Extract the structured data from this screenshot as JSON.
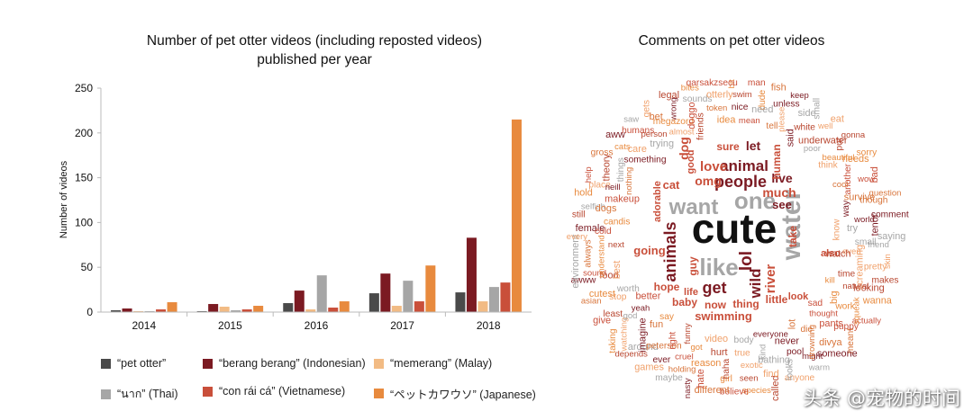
{
  "chart_data": [
    {
      "type": "bar",
      "title": "Number of pet otter videos (including reposted videos)",
      "subtitle": "published per year",
      "xlabel": "",
      "ylabel": "Number of videos",
      "ylim": [
        0,
        250
      ],
      "yticks": [
        0,
        50,
        100,
        150,
        200,
        250
      ],
      "categories": [
        "2014",
        "2015",
        "2016",
        "2017",
        "2018"
      ],
      "grid": false,
      "legend_position": "bottom",
      "series": [
        {
          "name": "“pet otter”",
          "color": "#4a4a4a",
          "values": [
            2,
            1,
            10,
            21,
            22
          ]
        },
        {
          "name": "“berang berang” (Indonesian)",
          "color": "#7b1a22",
          "values": [
            4,
            9,
            24,
            43,
            83
          ]
        },
        {
          "name": "“memerang” (Malay)",
          "color": "#f2bb84",
          "values": [
            1,
            6,
            3,
            7,
            12
          ]
        },
        {
          "name": "“นาก” (Thai)",
          "color": "#a6a6a6",
          "values": [
            1,
            2,
            41,
            35,
            28
          ]
        },
        {
          "name": "“con rái cá” (Vietnamese)",
          "color": "#c94f3a",
          "values": [
            3,
            3,
            5,
            12,
            33
          ]
        },
        {
          "name": "“ペットカワウソ” (Japanese)",
          "color": "#e88a3e",
          "values": [
            11,
            7,
            12,
            52,
            215
          ]
        }
      ]
    },
    {
      "type": "wordcloud",
      "title": "Comments on pet otter videos",
      "words": [
        "cute",
        "water",
        "like",
        "want",
        "one",
        "animal",
        "people",
        "love",
        "get",
        "wild",
        "lol",
        "river",
        "animals",
        "dog",
        "sure",
        "let",
        "live",
        "much",
        "see",
        "take",
        "omg",
        "cat",
        "going",
        "swimming",
        "baby",
        "now",
        "thing",
        "little",
        "hope",
        "life",
        "guy",
        "human",
        "adorable",
        "good",
        "also",
        "look",
        "bit",
        "man",
        "fish",
        "keep",
        "small",
        "eat",
        "gonna",
        "sorry",
        "bad",
        "question",
        "comment",
        "saying",
        "skin",
        "makes",
        "wanna",
        "actually",
        "meant",
        "someone",
        "warm",
        "anyone",
        "called",
        "species",
        "believe",
        "different",
        "nasty",
        "maybe",
        "games",
        "depends",
        "taking",
        "give",
        "asian",
        "awww",
        "environment",
        "every",
        "still",
        "hold",
        "help",
        "gross",
        "aww",
        "saw",
        "gets",
        "legal",
        "bites",
        "qarsakzsecu",
        "unless",
        "side",
        "well",
        "put",
        "needs",
        "wow",
        "though",
        "tenor",
        "friend",
        "pretty",
        "looking",
        "squeak",
        "puppy",
        "divya",
        "might",
        "looks",
        "find",
        "seen",
        "girl",
        "hate",
        "holding",
        "ever",
        "around",
        "watching",
        "least",
        "cutest",
        "sound",
        "always",
        "female",
        "selfish",
        "place",
        "theory",
        "cats",
        "humans",
        "bet",
        "wrong",
        "sounds",
        "otterly",
        "swim",
        "dude",
        "underwater",
        "beautiful",
        "another",
        "survive",
        "world",
        "small",
        "screaming",
        "natural",
        "work",
        "pants",
        "drowning",
        "pool",
        "bathing",
        "exotic",
        "haha",
        "reason",
        "cruel",
        "peterson",
        "imagine",
        "god",
        "stop",
        "food",
        "understand",
        "cold",
        "dogs",
        "neill",
        "things",
        "care",
        "person",
        "megazord",
        "doggo",
        "token",
        "nice",
        "need",
        "please",
        "white",
        "cool",
        "way",
        "try",
        "even",
        "time",
        "big",
        "thought",
        "die",
        "never",
        "kind",
        "true",
        "hurt",
        "got",
        "right",
        "fun",
        "yeah",
        "worth",
        "best",
        "next",
        "candis",
        "makeup",
        "nothing",
        "something",
        "trying",
        "almost",
        "friends",
        "idea",
        "mean",
        "tell",
        "said",
        "poor",
        "think",
        "know",
        "watch",
        "kill",
        "sad",
        "lot",
        "everyone",
        "body",
        "video",
        "funny",
        "say",
        "better"
      ]
    }
  ],
  "watermark": "头条 @宠物的时间"
}
